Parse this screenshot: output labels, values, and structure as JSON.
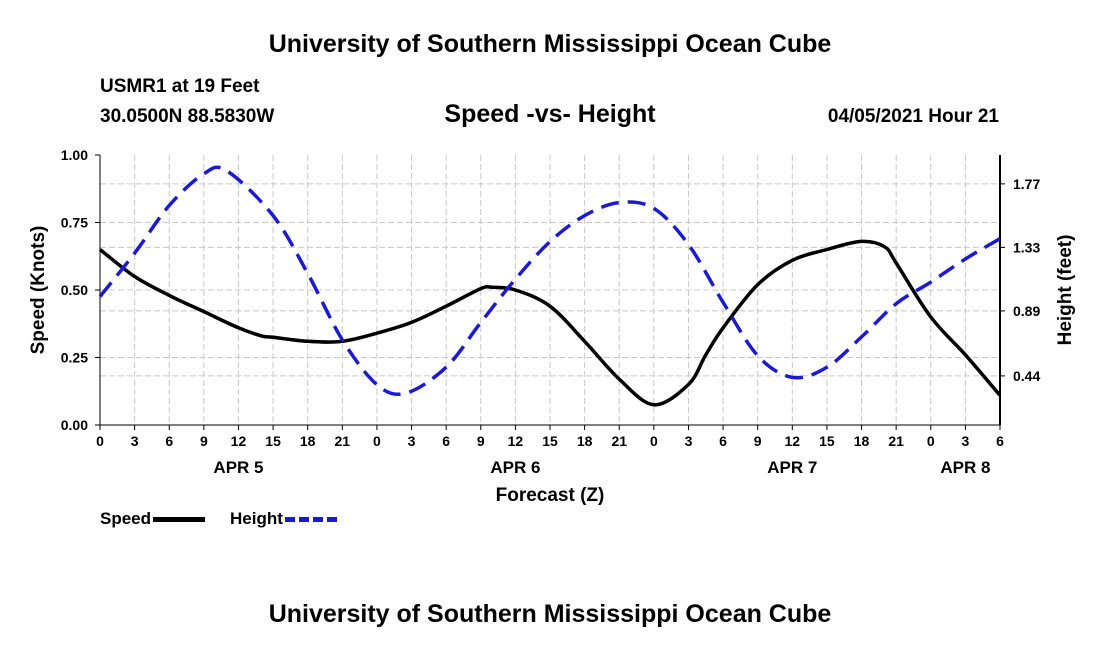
{
  "header": {
    "title": "University of Southern Mississippi Ocean Cube",
    "station": "USMR1 at 19 Feet",
    "coords": "30.0500N  88.5830W",
    "chart_title": "Speed -vs- Height",
    "datetime": "04/05/2021 Hour 21"
  },
  "footer": {
    "title": "University of Southern Mississippi Ocean Cube"
  },
  "legend": {
    "speed_label": "Speed",
    "height_label": "Height"
  },
  "colors": {
    "speed": "#000000",
    "height": "#1a1ad0",
    "grid": "#c8c8c8"
  },
  "chart_data": {
    "type": "line",
    "title": "Speed -vs- Height",
    "xlabel": "Forecast (Z)",
    "ylabel": "Speed (Knots)",
    "y2label": "Height (feet)",
    "xlim": [
      0,
      78
    ],
    "ylim": [
      0,
      1
    ],
    "y2lim": [
      0.1,
      1.97
    ],
    "x_ticks": [
      0,
      3,
      6,
      9,
      12,
      15,
      18,
      21,
      24,
      27,
      30,
      33,
      36,
      39,
      42,
      45,
      48,
      51,
      54,
      57,
      60,
      63,
      66,
      69,
      72,
      75,
      78
    ],
    "x_tick_labels": [
      "0",
      "3",
      "6",
      "9",
      "12",
      "15",
      "18",
      "21",
      "0",
      "3",
      "6",
      "9",
      "12",
      "15",
      "18",
      "21",
      "0",
      "3",
      "6",
      "9",
      "12",
      "15",
      "18",
      "21",
      "0",
      "3",
      "6"
    ],
    "date_labels": [
      {
        "x": 12,
        "label": "APR 5"
      },
      {
        "x": 36,
        "label": "APR 6"
      },
      {
        "x": 60,
        "label": "APR 7"
      },
      {
        "x": 75,
        "label": "APR 8"
      }
    ],
    "y_ticks": [
      0,
      0.25,
      0.5,
      0.75,
      1.0
    ],
    "y_tick_labels": [
      "0.00",
      "0.25",
      "0.50",
      "0.75",
      "1.00"
    ],
    "y2_ticks": [
      0.44,
      0.89,
      1.33,
      1.77
    ],
    "y2_tick_labels": [
      "0.44",
      "0.89",
      "1.33",
      "1.77"
    ],
    "grid": true,
    "series": [
      {
        "name": "Speed",
        "axis": "left",
        "x": [
          0,
          3,
          6,
          9,
          12,
          14,
          15,
          18,
          21,
          24,
          27,
          30,
          33,
          34,
          36,
          39,
          42,
          45,
          48,
          51,
          52.5,
          54,
          57,
          60,
          63,
          66,
          68,
          69,
          72,
          75,
          78
        ],
        "values": [
          0.65,
          0.55,
          0.48,
          0.42,
          0.36,
          0.33,
          0.325,
          0.31,
          0.31,
          0.34,
          0.38,
          0.44,
          0.505,
          0.51,
          0.5,
          0.44,
          0.31,
          0.17,
          0.075,
          0.15,
          0.26,
          0.36,
          0.52,
          0.61,
          0.65,
          0.68,
          0.66,
          0.6,
          0.4,
          0.26,
          0.11
        ]
      },
      {
        "name": "Height",
        "axis": "right",
        "x": [
          0,
          3,
          6,
          9,
          11,
          15,
          18,
          21,
          24,
          26.5,
          30,
          33,
          36,
          39,
          42,
          45,
          48,
          51,
          54,
          57,
          60,
          63,
          66,
          69,
          72,
          75,
          78
        ],
        "values": [
          0.99,
          1.29,
          1.62,
          1.84,
          1.86,
          1.55,
          1.15,
          0.69,
          0.38,
          0.32,
          0.5,
          0.81,
          1.11,
          1.37,
          1.55,
          1.64,
          1.6,
          1.35,
          0.95,
          0.58,
          0.43,
          0.5,
          0.71,
          0.94,
          1.09,
          1.25,
          1.39
        ]
      }
    ]
  }
}
